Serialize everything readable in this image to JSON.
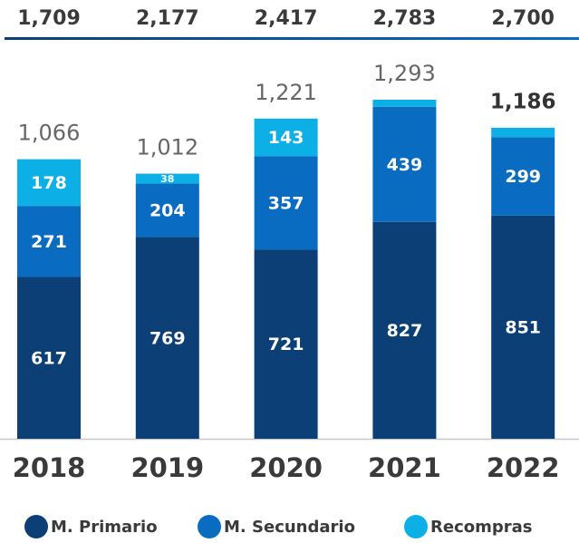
{
  "chart_data": {
    "type": "stacked_bar",
    "categories": [
      "2018",
      "2019",
      "2020",
      "2021",
      "2022"
    ],
    "series": [
      {
        "name": "M. Primario",
        "color": "#0b3f75",
        "values": [
          617,
          769,
          721,
          827,
          851
        ]
      },
      {
        "name": "M. Secundario",
        "color": "#0a6cc0",
        "values": [
          271,
          204,
          357,
          439,
          299
        ]
      },
      {
        "name": "Recompras",
        "color": "#0cb0e6",
        "values": [
          178,
          38,
          143,
          27,
          36
        ],
        "value_labels": [
          "178",
          "38",
          "143",
          null,
          null
        ]
      }
    ],
    "totals": {
      "values": [
        1066,
        1012,
        1221,
        1293,
        1186
      ],
      "value_labels": [
        "1,066",
        "1,012",
        "1,221",
        "1,293",
        "1,186"
      ]
    },
    "top_row": {
      "values": [
        1709,
        2177,
        2417,
        2783,
        2700
      ],
      "value_labels": [
        "1,709",
        "2,177",
        "2,417",
        "2,783",
        "2,700"
      ]
    },
    "highlight": "2022",
    "legend": "bottom"
  }
}
